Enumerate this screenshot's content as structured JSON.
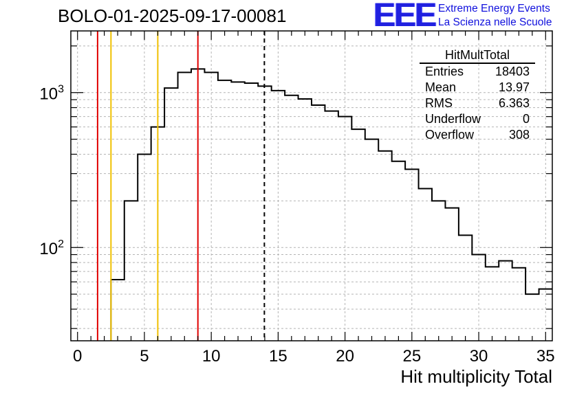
{
  "run_title": "BOLO-01-2025-09-17-00081",
  "logo": {
    "text": "EEE",
    "line1": "Extreme Energy Events",
    "line2": "La Scienza nelle Scuole",
    "color": "#2020e0"
  },
  "stats_box": {
    "title": "HitMultTotal",
    "rows": [
      {
        "label": "Entries",
        "value": "18403"
      },
      {
        "label": "Mean",
        "value": "13.97"
      },
      {
        "label": "RMS",
        "value": "6.363"
      },
      {
        "label": "Underflow",
        "value": "0"
      },
      {
        "label": "Overflow",
        "value": "308"
      }
    ]
  },
  "chart_data": {
    "type": "histogram",
    "title": "BOLO-01-2025-09-17-00081",
    "xlabel": "Hit multiplicity Total",
    "ylabel": "",
    "xlim": [
      -0.5,
      35.5
    ],
    "ylim": [
      25,
      2500
    ],
    "yscale": "log",
    "grid": true,
    "x_ticks": [
      "0",
      "5",
      "10",
      "15",
      "20",
      "25",
      "30",
      "35"
    ],
    "y_ticks": [
      {
        "value": 100,
        "base": "10",
        "exp": "2"
      },
      {
        "value": 1000,
        "base": "10",
        "exp": "3"
      }
    ],
    "bin_width": 1,
    "bin_lows": [
      -0.5,
      0.5,
      1.5,
      2.5,
      3.5,
      4.5,
      5.5,
      6.5,
      7.5,
      8.5,
      9.5,
      10.5,
      11.5,
      12.5,
      13.5,
      14.5,
      15.5,
      16.5,
      17.5,
      18.5,
      19.5,
      20.5,
      21.5,
      22.5,
      23.5,
      24.5,
      25.5,
      26.5,
      27.5,
      28.5,
      29.5,
      30.5,
      31.5,
      32.5,
      33.5,
      34.5
    ],
    "counts": [
      0,
      0,
      0,
      62,
      200,
      400,
      600,
      1070,
      1350,
      1420,
      1350,
      1200,
      1170,
      1150,
      1100,
      1030,
      960,
      910,
      830,
      760,
      700,
      580,
      500,
      420,
      360,
      320,
      240,
      200,
      180,
      120,
      90,
      75,
      82,
      74,
      50,
      54
    ],
    "vertical_lines": [
      {
        "x": 1.5,
        "color": "#e00000",
        "style": "solid"
      },
      {
        "x": 2.5,
        "color": "#f0c000",
        "style": "solid"
      },
      {
        "x": 6.0,
        "color": "#f0c000",
        "style": "solid"
      },
      {
        "x": 9.0,
        "color": "#e00000",
        "style": "solid"
      },
      {
        "x": 13.97,
        "color": "#000000",
        "style": "dashed"
      }
    ],
    "legend": "top-right stats box"
  }
}
